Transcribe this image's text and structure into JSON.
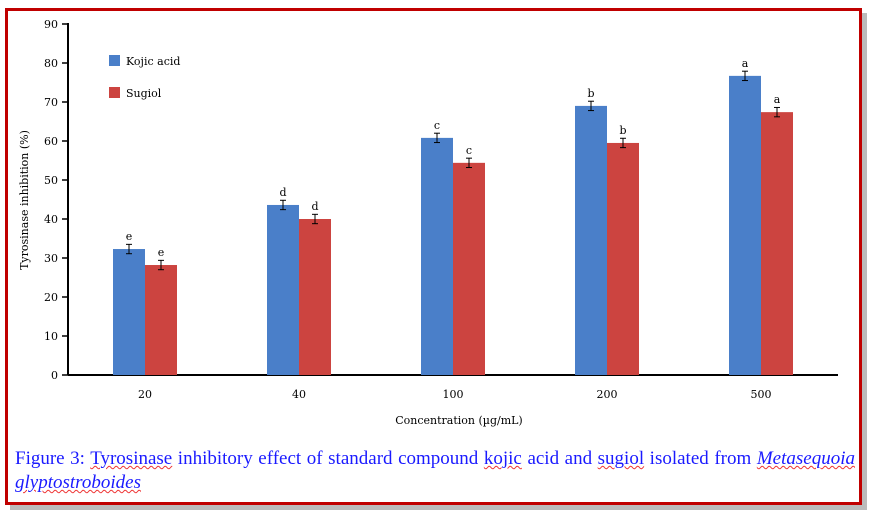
{
  "chart_data": {
    "type": "bar",
    "categories": [
      "20",
      "40",
      "100",
      "200",
      "500"
    ],
    "series": [
      {
        "name": "Kojic acid",
        "color": "#4a7fc9",
        "values": [
          32.3,
          43.6,
          60.8,
          69.0,
          76.7
        ],
        "letters": [
          "e",
          "d",
          "c",
          "b",
          "a"
        ]
      },
      {
        "name": "Sugiol",
        "color": "#cc4440",
        "values": [
          28.2,
          40.0,
          54.4,
          59.5,
          67.4
        ],
        "letters": [
          "e",
          "d",
          "c",
          "b",
          "a"
        ]
      }
    ],
    "error_bars": true,
    "xlabel": "Concentration (µg/mL)",
    "ylabel": "Tyrosinase inhibition (%)",
    "ylim": [
      0,
      90
    ],
    "yticks": [
      0,
      10,
      20,
      30,
      40,
      50,
      60,
      70,
      80,
      90
    ],
    "grid": false,
    "legend_position": "top-left"
  },
  "caption": {
    "prefix": "Figure 3: ",
    "text_parts": [
      "Tyrosinase",
      " inhibitory effect of standard compound ",
      "kojic",
      " acid and ",
      "sugiol",
      " isolated from "
    ],
    "species": "Metasequoia glyptostroboides"
  },
  "frame_color": "#c00000",
  "caption_color": "#1a1aff"
}
